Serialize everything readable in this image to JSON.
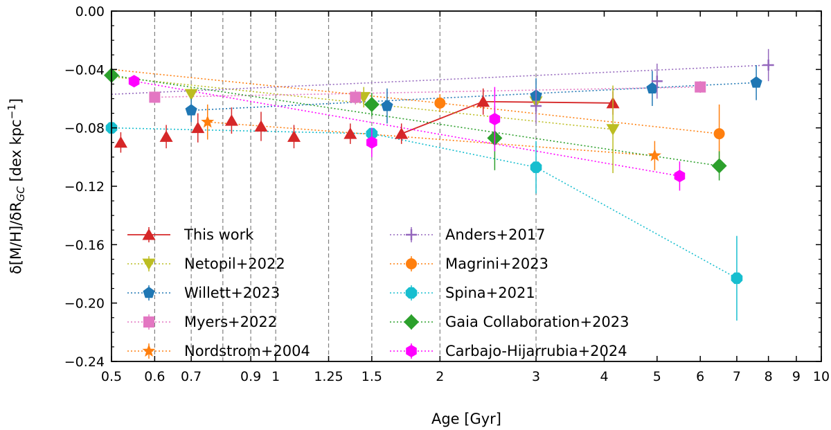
{
  "chart_data": {
    "type": "scatter",
    "xscale": "log",
    "xlabel": "Age [Gyr]",
    "ylabel": "δ[M/H]/δR_GC [dex kpc⁻¹]",
    "ylabel_parts": {
      "pre": "δ[M/H]/δR",
      "sub": "GC",
      "post": " [dex kpc",
      "sup": "−1",
      "close": "]"
    },
    "xlim": [
      0.5,
      10
    ],
    "ylim": [
      -0.24,
      0.0
    ],
    "xticks": [
      {
        "v": 0.5,
        "label": "0.5"
      },
      {
        "v": 0.6,
        "label": "0.6"
      },
      {
        "v": 0.7,
        "label": "0.7"
      },
      {
        "v": 0.9,
        "label": "0.9"
      },
      {
        "v": 1.0,
        "label": "1"
      },
      {
        "v": 1.25,
        "label": "1.25"
      },
      {
        "v": 1.5,
        "label": "1.5"
      },
      {
        "v": 2.0,
        "label": "2"
      },
      {
        "v": 3.0,
        "label": "3"
      },
      {
        "v": 4.0,
        "label": "4"
      },
      {
        "v": 5.0,
        "label": "5"
      },
      {
        "v": 6.0,
        "label": "6"
      },
      {
        "v": 7.0,
        "label": "7"
      },
      {
        "v": 8.0,
        "label": "8"
      },
      {
        "v": 9.0,
        "label": "9"
      },
      {
        "v": 10.0,
        "label": "10"
      }
    ],
    "yticks": [
      {
        "v": 0.0,
        "label": "0.00"
      },
      {
        "v": -0.04,
        "label": "−0.04"
      },
      {
        "v": -0.08,
        "label": "−0.08"
      },
      {
        "v": -0.12,
        "label": "−0.12"
      },
      {
        "v": -0.16,
        "label": "−0.16"
      },
      {
        "v": -0.2,
        "label": "−0.20"
      },
      {
        "v": -0.24,
        "label": "−0.24"
      }
    ],
    "vlines": [
      0.6,
      0.7,
      0.8,
      0.9,
      1.0,
      1.25,
      1.5,
      2.0,
      3.0
    ],
    "series": [
      {
        "name": "This work",
        "color": "#d62728",
        "marker": "triangle-up",
        "line": "solid",
        "points": [
          [
            0.52,
            -0.09,
            0.007
          ],
          [
            0.63,
            -0.086,
            0.008
          ],
          [
            0.72,
            -0.08,
            0.01
          ],
          [
            0.83,
            -0.075,
            0.009
          ],
          [
            0.94,
            -0.079,
            0.01
          ],
          [
            1.08,
            -0.086,
            0.008
          ],
          [
            1.37,
            -0.084,
            0.007
          ],
          [
            1.7,
            -0.084,
            0.007
          ],
          [
            2.4,
            -0.062,
            0.009
          ],
          [
            4.15,
            -0.063,
            0.008
          ]
        ],
        "fit": [
          [
            1.7,
            -0.084
          ],
          [
            2.4,
            -0.062
          ],
          [
            4.15,
            -0.063
          ]
        ]
      },
      {
        "name": "Netopil+2022",
        "color": "#bcbd22",
        "marker": "triangle-down",
        "line": "dotted",
        "points": [
          [
            0.7,
            -0.057,
            0.005
          ],
          [
            1.45,
            -0.059,
            0.007
          ],
          [
            3.0,
            -0.062,
            0.008
          ],
          [
            4.15,
            -0.081,
            0.03
          ]
        ],
        "fit": [
          [
            0.5,
            -0.045
          ],
          [
            4.15,
            -0.081
          ]
        ]
      },
      {
        "name": "Willett+2023",
        "color": "#1f77b4",
        "marker": "pentagon",
        "line": "dotted",
        "points": [
          [
            0.7,
            -0.068,
            0.008
          ],
          [
            1.6,
            -0.065,
            0.012
          ],
          [
            3.0,
            -0.058,
            0.012
          ],
          [
            4.9,
            -0.053,
            0.012
          ],
          [
            7.6,
            -0.049,
            0.012
          ]
        ],
        "fit": [
          [
            0.7,
            -0.068
          ],
          [
            7.6,
            -0.049
          ]
        ]
      },
      {
        "name": "Myers+2022",
        "color": "#e377c2",
        "marker": "square",
        "line": "dotted",
        "points": [
          [
            0.6,
            -0.059,
            0.004
          ],
          [
            1.4,
            -0.059,
            0.005
          ],
          [
            6.0,
            -0.052,
            0.004
          ]
        ],
        "fit": [
          [
            0.6,
            -0.059
          ],
          [
            6.0,
            -0.052
          ]
        ]
      },
      {
        "name": "Nordstrom+2004",
        "color": "#ff7f0e",
        "marker": "star",
        "line": "dotted",
        "points": [
          [
            0.75,
            -0.076,
            0.012
          ],
          [
            4.95,
            -0.099,
            0.01
          ]
        ],
        "fit": [
          [
            0.75,
            -0.076
          ],
          [
            4.95,
            -0.099
          ]
        ]
      },
      {
        "name": "Anders+2017",
        "color": "#9467bd",
        "marker": "plus",
        "line": "dotted",
        "points": [
          [
            3.0,
            -0.065,
            0.012
          ],
          [
            5.0,
            -0.048,
            0.012
          ],
          [
            8.0,
            -0.037,
            0.011
          ]
        ],
        "fit": [
          [
            0.5,
            -0.057
          ],
          [
            8.0,
            -0.037
          ]
        ]
      },
      {
        "name": "Magrini+2023",
        "color": "#ff7f0e",
        "marker": "circle",
        "line": "dotted",
        "points": [
          [
            2.0,
            -0.063,
            0.006
          ],
          [
            6.5,
            -0.084,
            0.02
          ]
        ],
        "fit": [
          [
            0.5,
            -0.04
          ],
          [
            2.0,
            -0.063
          ],
          [
            6.5,
            -0.084
          ]
        ]
      },
      {
        "name": "Spina+2021",
        "color": "#17becf",
        "marker": "octagon",
        "line": "dotted",
        "points": [
          [
            0.5,
            -0.08,
            0.004
          ],
          [
            1.5,
            -0.084,
            0.004
          ],
          [
            3.0,
            -0.107,
            0.018
          ],
          [
            7.0,
            -0.183,
            0.029
          ]
        ],
        "fit": [
          [
            0.5,
            -0.08
          ],
          [
            1.5,
            -0.084
          ],
          [
            3.0,
            -0.107
          ],
          [
            7.0,
            -0.183
          ]
        ]
      },
      {
        "name": "Gaia Collaboration+2023",
        "color": "#2ca02c",
        "marker": "diamond",
        "line": "dotted",
        "points": [
          [
            0.5,
            -0.044,
            0.004
          ],
          [
            1.5,
            -0.064,
            0.008
          ],
          [
            2.52,
            -0.087,
            0.022
          ],
          [
            6.5,
            -0.106,
            0.01
          ]
        ],
        "fit": [
          [
            0.5,
            -0.044
          ],
          [
            6.5,
            -0.106
          ]
        ]
      },
      {
        "name": "Carbajo-Hijarrubia+2024",
        "color": "#ff00ff",
        "marker": "hexagon",
        "line": "dotted",
        "points": [
          [
            0.55,
            -0.048,
            0.004
          ],
          [
            1.5,
            -0.09,
            0.01
          ],
          [
            2.52,
            -0.074,
            0.022
          ],
          [
            5.5,
            -0.113,
            0.01
          ]
        ],
        "fit": [
          [
            0.55,
            -0.048
          ],
          [
            5.5,
            -0.113
          ]
        ]
      }
    ],
    "legend": "lower-left, two columns"
  }
}
